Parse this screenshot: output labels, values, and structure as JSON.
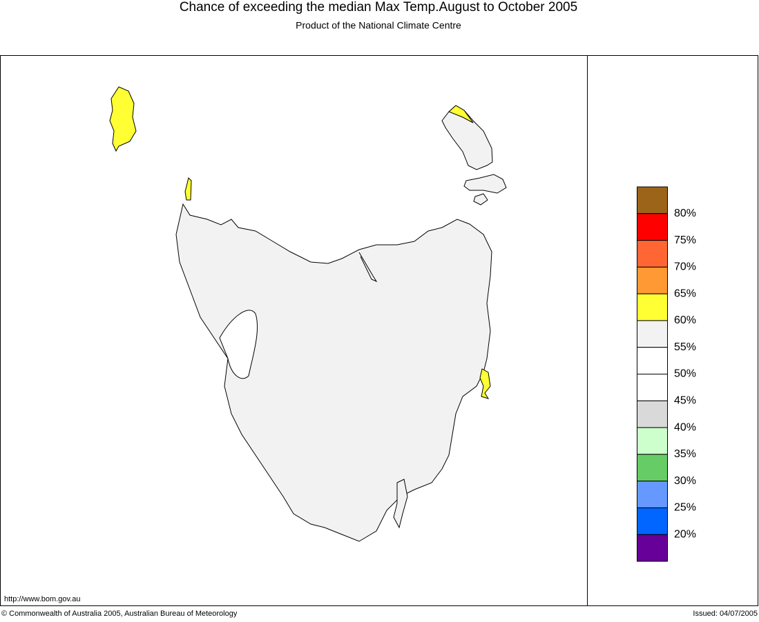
{
  "header": {
    "title": "Chance of exceeding the median Max Temp.August to October 2005",
    "subtitle": "Product of the National Climate Centre"
  },
  "legend": {
    "colors": [
      "#9c6418",
      "#ff0000",
      "#ff6633",
      "#ff9933",
      "#ffff33",
      "#f2f2f2",
      "#ffffff",
      "#ffffff",
      "#d9d9d9",
      "#ccffcc",
      "#66cc66",
      "#6699ff",
      "#0066ff",
      "#660099"
    ],
    "labels": [
      "80%",
      "75%",
      "70%",
      "65%",
      "60%",
      "55%",
      "50%",
      "45%",
      "40%",
      "35%",
      "30%",
      "25%",
      "20%"
    ]
  },
  "footer": {
    "url": "http://www.bom.gov.au",
    "copyright": "© Commonwealth of Australia 2005, Australian Bureau of Meteorology",
    "issued": "Issued: 04/07/2005"
  }
}
